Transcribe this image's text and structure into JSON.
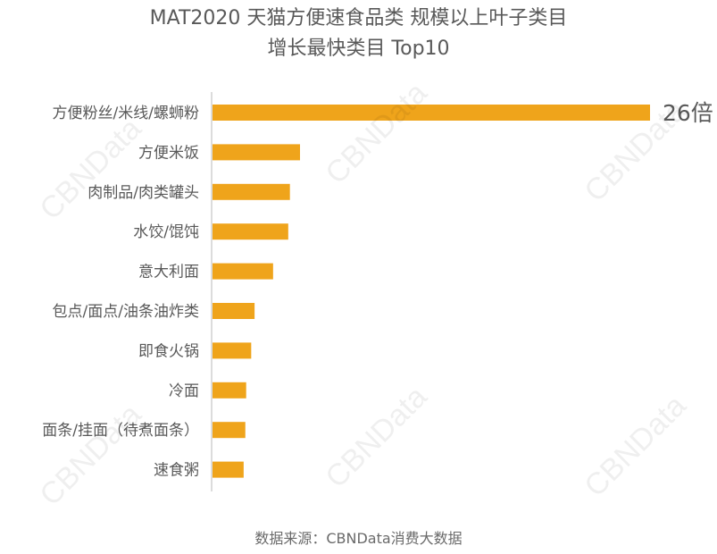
{
  "chart_title": {
    "line1": "MAT2020 天猫方便速食品类 规模以上叶子类目",
    "line2": "增长最快类目 Top10"
  },
  "source_text": "数据来源：CBNData消费大数据",
  "watermark_text": "CBNData",
  "colors": {
    "bar": "#EFA41B",
    "axis": "#d0d0d0",
    "label": "#595959",
    "title": "#595959"
  },
  "chart_data": {
    "type": "bar",
    "orientation": "horizontal",
    "title": "MAT2020 天猫方便速食品类 规模以上叶子类目 增长最快类目 Top10",
    "categories": [
      "方便粉丝/米线/螺蛳粉",
      "方便米饭",
      "肉制品/肉类罐头",
      "水饺/馄饨",
      "意大利面",
      "包点/面点/油条油炸类",
      "即食火锅",
      "冷面",
      "面条/挂面（待煮面条）",
      "速食粥"
    ],
    "values": [
      26,
      5.2,
      4.6,
      4.5,
      3.6,
      2.5,
      2.3,
      2.0,
      1.95,
      1.85
    ],
    "data_labels": [
      "26倍",
      "",
      "",
      "",
      "",
      "",
      "",
      "",
      "",
      ""
    ],
    "xlim": [
      0,
      26
    ],
    "legend": "none",
    "grid": false
  }
}
